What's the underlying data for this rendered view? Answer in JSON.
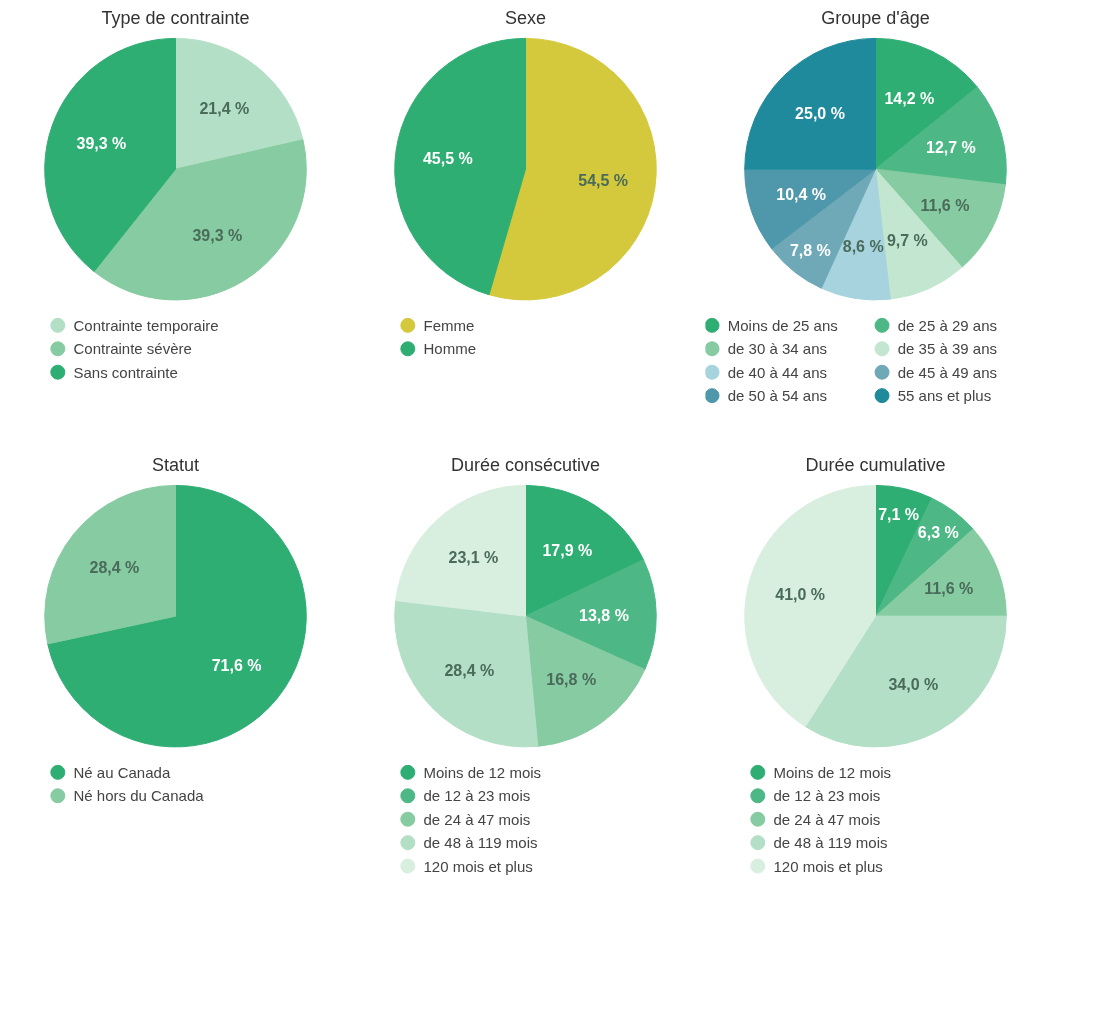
{
  "chart_data": [
    {
      "type": "pie",
      "title": "Type de contrainte",
      "categories": [
        "Contrainte temporaire",
        "Contrainte sévère",
        "Sans contrainte"
      ],
      "values": [
        21.4,
        39.3,
        39.3
      ],
      "colors": [
        "#b3dfc6",
        "#86cba1",
        "#2fae74"
      ],
      "value_labels": [
        "21,4 %",
        "39,3 %",
        "39,3 %"
      ],
      "legend": "bottom"
    },
    {
      "type": "pie",
      "title": "Sexe",
      "categories": [
        "Femme",
        "Homme"
      ],
      "values": [
        54.5,
        45.5
      ],
      "colors": [
        "#d4c93c",
        "#2fae74"
      ],
      "value_labels": [
        "54,5 %",
        "45,5 %"
      ],
      "legend": "bottom"
    },
    {
      "type": "pie",
      "title": "Groupe d'âge",
      "categories": [
        "Moins de 25 ans",
        "de 25 à 29 ans",
        "de 30 à 34 ans",
        "de 35 à 39 ans",
        "de 40 à 44 ans",
        "de 45 à 49 ans",
        "de 50 à 54 ans",
        "55 ans et plus"
      ],
      "values": [
        14.2,
        12.7,
        11.6,
        9.7,
        8.6,
        7.8,
        10.4,
        25.0
      ],
      "colors": [
        "#2fae74",
        "#4db886",
        "#86cba1",
        "#c2e6cf",
        "#a6d3de",
        "#6fa9b8",
        "#4f98ac",
        "#1f8a9c"
      ],
      "value_labels": [
        "14,2 %",
        "12,7 %",
        "11,6 %",
        "9,7 %",
        "8,6 %",
        "7,8 %",
        "10,4 %",
        "25,0 %"
      ],
      "legend": "bottom"
    },
    {
      "type": "pie",
      "title": "Statut",
      "categories": [
        "Né au Canada",
        "Né hors du Canada"
      ],
      "values": [
        71.6,
        28.4
      ],
      "colors": [
        "#2fae74",
        "#86cba1"
      ],
      "value_labels": [
        "71,6 %",
        "28,4 %"
      ],
      "legend": "bottom"
    },
    {
      "type": "pie",
      "title": "Durée consécutive",
      "categories": [
        "Moins de 12 mois",
        "de 12 à 23 mois",
        "de 24 à 47 mois",
        "de 48 à 119 mois",
        "120 mois et plus"
      ],
      "values": [
        17.9,
        13.8,
        16.8,
        28.4,
        23.1
      ],
      "colors": [
        "#2fae74",
        "#4db886",
        "#86cba1",
        "#b3dfc6",
        "#d8efe0"
      ],
      "value_labels": [
        "17,9 %",
        "13,8 %",
        "16,8 %",
        "28,4 %",
        "23,1 %"
      ],
      "legend": "bottom"
    },
    {
      "type": "pie",
      "title": "Durée cumulative",
      "categories": [
        "Moins de 12 mois",
        "de 12 à 23 mois",
        "de 24 à 47 mois",
        "de 48 à 119 mois",
        "120 mois et plus"
      ],
      "values": [
        7.1,
        6.3,
        11.6,
        34.0,
        41.0
      ],
      "colors": [
        "#2fae74",
        "#4db886",
        "#86cba1",
        "#b3dfc6",
        "#d8efe0"
      ],
      "value_labels": [
        "7,1 %",
        "6,3 %",
        "11,6 %",
        "34,0 %",
        "41,0 %"
      ],
      "legend": "bottom"
    }
  ]
}
